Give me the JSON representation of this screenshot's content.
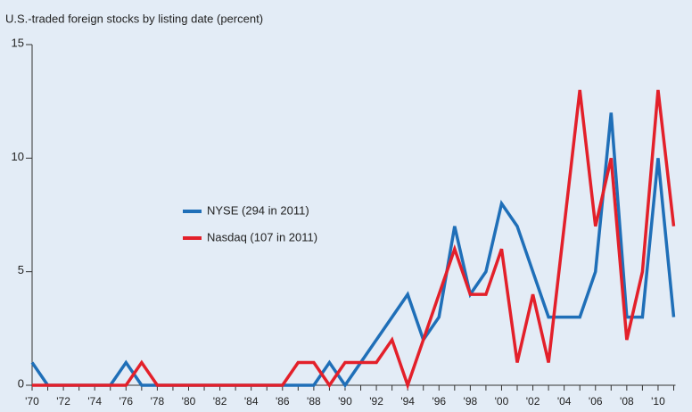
{
  "chart_data": {
    "type": "line",
    "title": "U.S.-traded foreign stocks by listing date (percent)",
    "x": [
      1970,
      1971,
      1972,
      1973,
      1974,
      1975,
      1976,
      1977,
      1978,
      1979,
      1980,
      1981,
      1982,
      1983,
      1984,
      1985,
      1986,
      1987,
      1988,
      1989,
      1990,
      1991,
      1992,
      1993,
      1994,
      1995,
      1996,
      1997,
      1998,
      1999,
      2000,
      2001,
      2002,
      2003,
      2004,
      2005,
      2006,
      2007,
      2008,
      2009,
      2010,
      2011
    ],
    "series": [
      {
        "name": "NYSE (294 in 2011)",
        "color": "#1f6fb8",
        "values": [
          1,
          0,
          0,
          0,
          0,
          0,
          1,
          0,
          0,
          0,
          0,
          0,
          0,
          0,
          0,
          0,
          0,
          0,
          0,
          1,
          0,
          1,
          2,
          3,
          4,
          2,
          3,
          7,
          4,
          5,
          8,
          7,
          5,
          3,
          3,
          3,
          5,
          12,
          3,
          3,
          10,
          3
        ]
      },
      {
        "name": "Nasdaq (107 in 2011)",
        "color": "#e3202a",
        "values": [
          0,
          0,
          0,
          0,
          0,
          0,
          0,
          1,
          0,
          0,
          0,
          0,
          0,
          0,
          0,
          0,
          0,
          1,
          1,
          0,
          1,
          1,
          1,
          2,
          0,
          2,
          4,
          6,
          4,
          4,
          6,
          1,
          4,
          1,
          7,
          13,
          7,
          10,
          2,
          5,
          13,
          7
        ]
      }
    ],
    "xlim": [
      1970,
      2011
    ],
    "xticks": [
      {
        "value": 1970,
        "label": "'70"
      },
      {
        "value": 1972,
        "label": "'72"
      },
      {
        "value": 1974,
        "label": "'74"
      },
      {
        "value": 1976,
        "label": "'76"
      },
      {
        "value": 1978,
        "label": "'78"
      },
      {
        "value": 1980,
        "label": "'80"
      },
      {
        "value": 1982,
        "label": "'82"
      },
      {
        "value": 1984,
        "label": "'84"
      },
      {
        "value": 1986,
        "label": "'86"
      },
      {
        "value": 1988,
        "label": "'88"
      },
      {
        "value": 1990,
        "label": "'90"
      },
      {
        "value": 1992,
        "label": "'92"
      },
      {
        "value": 1994,
        "label": "'94"
      },
      {
        "value": 1996,
        "label": "'96"
      },
      {
        "value": 1998,
        "label": "'98"
      },
      {
        "value": 2000,
        "label": "'00"
      },
      {
        "value": 2002,
        "label": "'02"
      },
      {
        "value": 2004,
        "label": "'04"
      },
      {
        "value": 2006,
        "label": "'06"
      },
      {
        "value": 2008,
        "label": "'08"
      },
      {
        "value": 2010,
        "label": "'10"
      }
    ],
    "xticks_minor": [
      1971,
      1973,
      1975,
      1977,
      1979,
      1981,
      1983,
      1985,
      1987,
      1989,
      1991,
      1993,
      1995,
      1997,
      1999,
      2001,
      2003,
      2005,
      2007,
      2009,
      2011
    ],
    "ylim": [
      0,
      15
    ],
    "yticks": [
      0,
      5,
      10,
      15
    ]
  }
}
